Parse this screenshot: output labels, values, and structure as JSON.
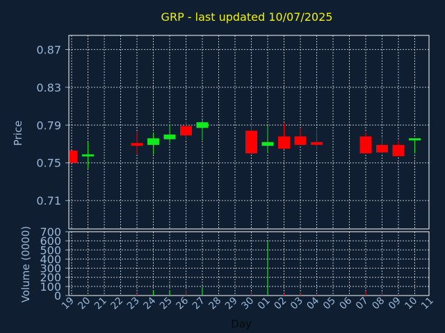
{
  "chart_data": {
    "type": "candlestick",
    "title": "GRP - last updated 10/07/2025",
    "xlabel": "Day",
    "grid": true,
    "colors": {
      "background": "#0f1e30",
      "axis_text": "#9ab8d8",
      "title": "#f2f20a",
      "up": "#14e81e",
      "down": "#ff0000",
      "grid": "#ffffff"
    },
    "x_ticks": [
      "19",
      "20",
      "21",
      "22",
      "23",
      "24",
      "25",
      "26",
      "27",
      "28",
      "29",
      "30",
      "01",
      "02",
      "03",
      "04",
      "05",
      "06",
      "07",
      "08",
      "09",
      "10",
      "11"
    ],
    "price_panel": {
      "ylabel": "Price",
      "ylim": [
        0.68,
        0.885
      ],
      "y_ticks": [
        0.71,
        0.75,
        0.79,
        0.83,
        0.87
      ],
      "y_tick_labels": [
        "0.71",
        "0.75",
        "0.79",
        "0.83",
        "0.87"
      ]
    },
    "volume_panel": {
      "ylabel": "Volume (0000)",
      "ylim": [
        0,
        700
      ],
      "y_ticks": [
        0,
        100,
        200,
        300,
        400,
        500,
        600,
        700
      ],
      "y_tick_labels": [
        "0",
        "100",
        "200",
        "300",
        "400",
        "500",
        "600",
        "700"
      ]
    },
    "candles": [
      {
        "day": "19",
        "open": 0.763,
        "high": 0.763,
        "low": 0.75,
        "close": 0.75,
        "volume": 0
      },
      {
        "day": "20",
        "open": 0.757,
        "high": 0.772,
        "low": 0.744,
        "close": 0.759,
        "volume": 4
      },
      {
        "day": "23",
        "open": 0.771,
        "high": 0.783,
        "low": 0.759,
        "close": 0.768,
        "volume": 20
      },
      {
        "day": "24",
        "open": 0.769,
        "high": 0.782,
        "low": 0.759,
        "close": 0.776,
        "volume": 60
      },
      {
        "day": "25",
        "open": 0.775,
        "high": 0.791,
        "low": 0.771,
        "close": 0.78,
        "volume": 55
      },
      {
        "day": "26",
        "open": 0.789,
        "high": 0.794,
        "low": 0.774,
        "close": 0.779,
        "volume": 60
      },
      {
        "day": "27",
        "open": 0.787,
        "high": 0.795,
        "low": 0.774,
        "close": 0.793,
        "volume": 90
      },
      {
        "day": "30",
        "open": 0.784,
        "high": 0.794,
        "low": 0.759,
        "close": 0.76,
        "volume": 40
      },
      {
        "day": "01",
        "open": 0.768,
        "high": 0.79,
        "low": 0.76,
        "close": 0.772,
        "volume": 600
      },
      {
        "day": "02",
        "open": 0.778,
        "high": 0.792,
        "low": 0.765,
        "close": 0.765,
        "volume": 20
      },
      {
        "day": "03",
        "open": 0.778,
        "high": 0.787,
        "low": 0.769,
        "close": 0.769,
        "volume": 25
      },
      {
        "day": "04",
        "open": 0.772,
        "high": 0.785,
        "low": 0.763,
        "close": 0.769,
        "volume": 20
      },
      {
        "day": "07",
        "open": 0.778,
        "high": 0.782,
        "low": 0.76,
        "close": 0.76,
        "volume": 50
      },
      {
        "day": "08",
        "open": 0.769,
        "high": 0.778,
        "low": 0.76,
        "close": 0.761,
        "volume": 40
      },
      {
        "day": "09",
        "open": 0.769,
        "high": 0.774,
        "low": 0.757,
        "close": 0.757,
        "volume": 10
      },
      {
        "day": "10",
        "open": 0.775,
        "high": 0.776,
        "low": 0.76,
        "close": 0.776,
        "volume": 0
      }
    ]
  }
}
